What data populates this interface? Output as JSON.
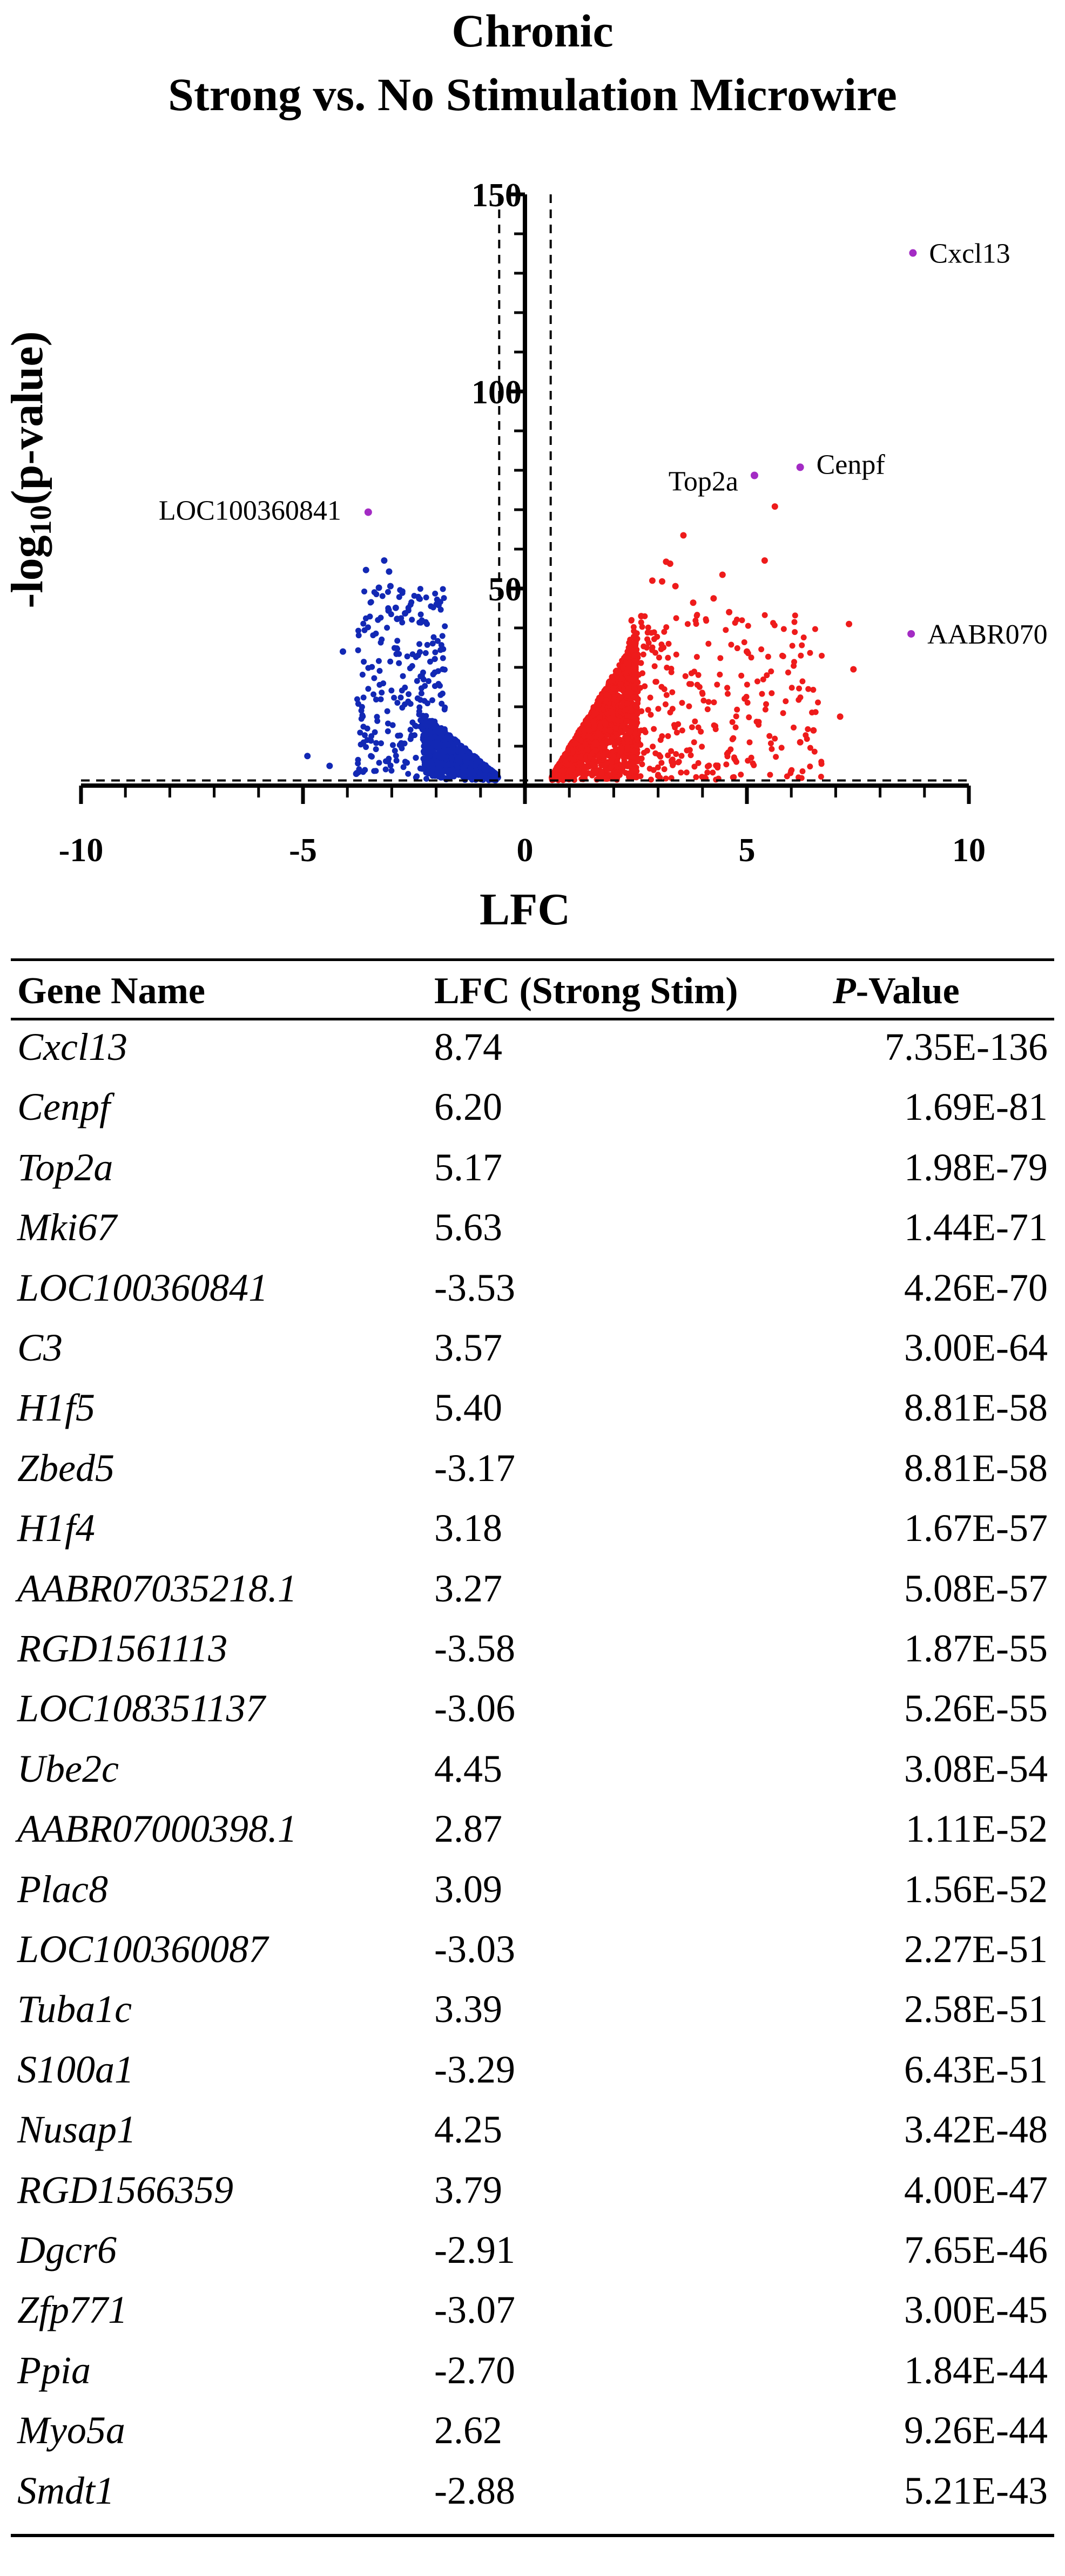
{
  "chart_data": {
    "type": "scatter",
    "title": "Chronic",
    "subtitle": "Strong vs. No Stimulation Microwire",
    "xlabel": "LFC",
    "ylabel_main": "-log",
    "ylabel_sub": "10",
    "ylabel_tail": "(p-value)",
    "xlim": [
      -10,
      10
    ],
    "ylim": [
      0,
      150
    ],
    "xticks": [
      -10,
      -5,
      0,
      5,
      10
    ],
    "yticks": [
      50,
      100,
      150
    ],
    "thresholds": {
      "lfc": [
        -0.58,
        0.58
      ],
      "neg_log10_p": 1.3
    },
    "colors": {
      "down": "#1228b4",
      "up": "#ee1b1b",
      "labeled": "#a32bc4"
    },
    "labeled_points": [
      {
        "gene": "Cxcl13",
        "lfc": 8.74,
        "neg_log10_p": 135.13
      },
      {
        "gene": "Cenpf",
        "lfc": 6.2,
        "neg_log10_p": 80.77
      },
      {
        "gene": "Top2a",
        "lfc": 5.17,
        "neg_log10_p": 78.7
      },
      {
        "gene": "LOC100360841",
        "lfc": -3.53,
        "neg_log10_p": 69.37
      },
      {
        "gene": "AABR070",
        "lfc": 8.7,
        "neg_log10_p": 38.5
      }
    ],
    "highlight_up": [
      [
        5.63,
        70.8
      ],
      [
        3.57,
        63.5
      ],
      [
        5.4,
        57.1
      ],
      [
        3.18,
        56.8
      ],
      [
        3.27,
        56.3
      ],
      [
        4.45,
        53.5
      ],
      [
        2.87,
        52.0
      ],
      [
        3.09,
        51.8
      ],
      [
        3.39,
        50.6
      ],
      [
        4.25,
        47.5
      ],
      [
        3.79,
        46.4
      ],
      [
        2.62,
        43.0
      ],
      [
        7.3,
        41.0
      ],
      [
        7.4,
        29.5
      ],
      [
        7.1,
        17.5
      ],
      [
        6.5,
        14.0
      ],
      [
        6.2,
        11.0
      ],
      [
        5.0,
        34.0
      ],
      [
        4.6,
        44.0
      ]
    ],
    "highlight_down": [
      [
        -3.17,
        57.1
      ],
      [
        -3.58,
        54.7
      ],
      [
        -3.06,
        54.3
      ],
      [
        -3.03,
        50.6
      ],
      [
        -3.29,
        50.2
      ],
      [
        -2.91,
        45.1
      ],
      [
        -3.07,
        44.5
      ],
      [
        -2.7,
        43.7
      ],
      [
        -2.88,
        42.3
      ],
      [
        -4.1,
        34.0
      ],
      [
        -4.9,
        7.5
      ],
      [
        -4.4,
        5.0
      ],
      [
        -3.8,
        3.0
      ]
    ],
    "table": {
      "headers": {
        "gene": "Gene Name",
        "lfc": "LFC (Strong Stim)",
        "p_italic": "P",
        "p_rest": "-Value"
      },
      "rows": [
        {
          "gene": "Cxcl13",
          "lfc": "8.74",
          "p": "7.35E-136"
        },
        {
          "gene": "Cenpf",
          "lfc": "6.20",
          "p": "1.69E-81"
        },
        {
          "gene": "Top2a",
          "lfc": "5.17",
          "p": "1.98E-79"
        },
        {
          "gene": "Mki67",
          "lfc": "5.63",
          "p": "1.44E-71"
        },
        {
          "gene": "LOC100360841",
          "lfc": "-3.53",
          "p": "4.26E-70"
        },
        {
          "gene": "C3",
          "lfc": "3.57",
          "p": "3.00E-64"
        },
        {
          "gene": "H1f5",
          "lfc": "5.40",
          "p": "8.81E-58"
        },
        {
          "gene": "Zbed5",
          "lfc": "-3.17",
          "p": "8.81E-58"
        },
        {
          "gene": "H1f4",
          "lfc": "3.18",
          "p": "1.67E-57"
        },
        {
          "gene": "AABR07035218.1",
          "lfc": "3.27",
          "p": "5.08E-57"
        },
        {
          "gene": "RGD1561113",
          "lfc": "-3.58",
          "p": "1.87E-55"
        },
        {
          "gene": "LOC108351137",
          "lfc": "-3.06",
          "p": "5.26E-55"
        },
        {
          "gene": "Ube2c",
          "lfc": "4.45",
          "p": "3.08E-54"
        },
        {
          "gene": "AABR07000398.1",
          "lfc": "2.87",
          "p": "1.11E-52"
        },
        {
          "gene": "Plac8",
          "lfc": "3.09",
          "p": "1.56E-52"
        },
        {
          "gene": "LOC100360087",
          "lfc": "-3.03",
          "p": "2.27E-51"
        },
        {
          "gene": "Tuba1c",
          "lfc": "3.39",
          "p": "2.58E-51"
        },
        {
          "gene": "S100a1",
          "lfc": "-3.29",
          "p": "6.43E-51"
        },
        {
          "gene": "Nusap1",
          "lfc": "4.25",
          "p": "3.42E-48"
        },
        {
          "gene": "RGD1566359",
          "lfc": "3.79",
          "p": "4.00E-47"
        },
        {
          "gene": "Dgcr6",
          "lfc": "-2.91",
          "p": "7.65E-46"
        },
        {
          "gene": "Zfp771",
          "lfc": "-3.07",
          "p": "3.00E-45"
        },
        {
          "gene": "Ppia",
          "lfc": "-2.70",
          "p": "1.84E-44"
        },
        {
          "gene": "Myo5a",
          "lfc": "2.62",
          "p": "9.26E-44"
        },
        {
          "gene": "Smdt1",
          "lfc": "-2.88",
          "p": "5.21E-43"
        }
      ]
    }
  }
}
